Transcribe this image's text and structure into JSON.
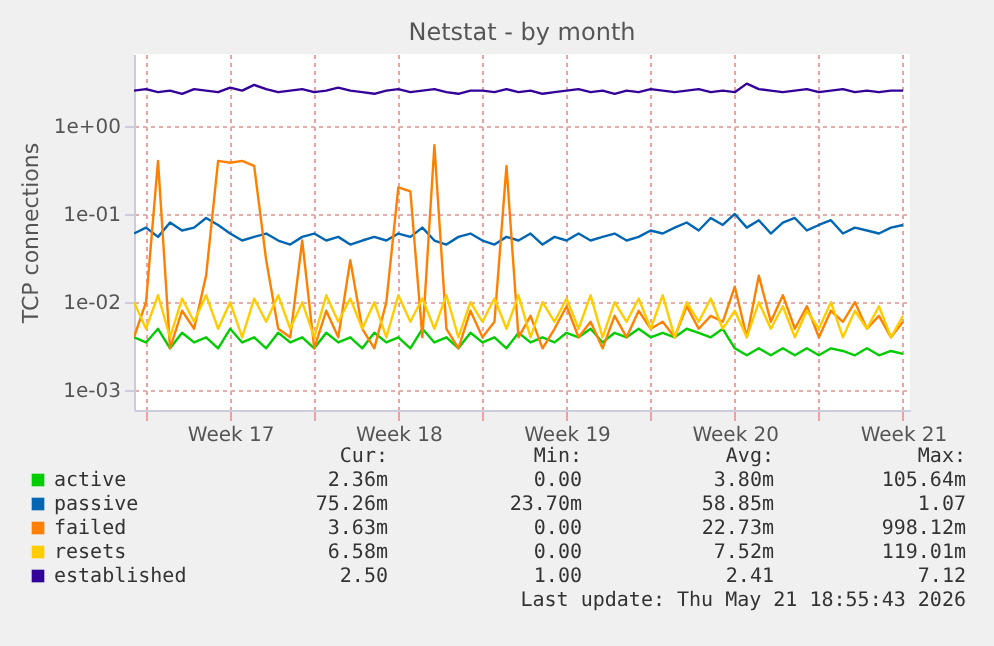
{
  "chart_data": {
    "type": "line",
    "title": "Netstat - by month",
    "ylabel": "TCP connections",
    "log": true,
    "grid": true,
    "legend": "bottom",
    "marker": "none",
    "line_style": "solid",
    "xlim": [
      "2026-04-19T12:00",
      "2026-05-21T19:00"
    ],
    "ylim": [
      0.0006,
      6.5
    ],
    "xticks": [
      {
        "value": "2026-04-20",
        "label": null
      },
      {
        "value": "2026-04-23T12:00",
        "label": "Week 17"
      },
      {
        "value": "2026-04-27",
        "label": null
      },
      {
        "value": "2026-04-30T12:00",
        "label": "Week 18"
      },
      {
        "value": "2026-05-04",
        "label": null
      },
      {
        "value": "2026-05-07T12:00",
        "label": "Week 19"
      },
      {
        "value": "2026-05-11",
        "label": null
      },
      {
        "value": "2026-05-14T12:00",
        "label": "Week 20"
      },
      {
        "value": "2026-05-18",
        "label": null
      },
      {
        "value": "2026-05-21T12:00",
        "label": "Week 21"
      }
    ],
    "yticks": [
      {
        "value": 0.001,
        "label": "1e-03"
      },
      {
        "value": 0.01,
        "label": "1e-02"
      },
      {
        "value": 0.1,
        "label": "1e-01"
      },
      {
        "value": 1,
        "label": "1e+00"
      }
    ],
    "x": [
      "2026-04-19T12:00",
      "2026-04-20T00:00",
      "2026-04-20T12:00",
      "2026-04-21T00:00",
      "2026-04-21T12:00",
      "2026-04-22T00:00",
      "2026-04-22T12:00",
      "2026-04-23T00:00",
      "2026-04-23T12:00",
      "2026-04-24T00:00",
      "2026-04-24T12:00",
      "2026-04-25T00:00",
      "2026-04-25T12:00",
      "2026-04-26T00:00",
      "2026-04-26T12:00",
      "2026-04-27T00:00",
      "2026-04-27T12:00",
      "2026-04-28T00:00",
      "2026-04-28T12:00",
      "2026-04-29T00:00",
      "2026-04-29T12:00",
      "2026-04-30T00:00",
      "2026-04-30T12:00",
      "2026-05-01T00:00",
      "2026-05-01T12:00",
      "2026-05-02T00:00",
      "2026-05-02T12:00",
      "2026-05-03T00:00",
      "2026-05-03T12:00",
      "2026-05-04T00:00",
      "2026-05-04T12:00",
      "2026-05-05T00:00",
      "2026-05-05T12:00",
      "2026-05-06T00:00",
      "2026-05-06T12:00",
      "2026-05-07T00:00",
      "2026-05-07T12:00",
      "2026-05-08T00:00",
      "2026-05-08T12:00",
      "2026-05-09T00:00",
      "2026-05-09T12:00",
      "2026-05-10T00:00",
      "2026-05-10T12:00",
      "2026-05-11T00:00",
      "2026-05-11T12:00",
      "2026-05-12T00:00",
      "2026-05-12T12:00",
      "2026-05-13T00:00",
      "2026-05-13T12:00",
      "2026-05-14T00:00",
      "2026-05-14T12:00",
      "2026-05-15T00:00",
      "2026-05-15T12:00",
      "2026-05-16T00:00",
      "2026-05-16T12:00",
      "2026-05-17T00:00",
      "2026-05-17T12:00",
      "2026-05-18T00:00",
      "2026-05-18T12:00",
      "2026-05-19T00:00",
      "2026-05-19T12:00",
      "2026-05-20T00:00",
      "2026-05-20T12:00",
      "2026-05-21T00:00",
      "2026-05-21T12:00"
    ],
    "series": [
      {
        "name": "active",
        "color": "#00cc00",
        "values": [
          0.004,
          0.0035,
          0.005,
          0.003,
          0.0045,
          0.0035,
          0.004,
          0.003,
          0.005,
          0.0035,
          0.004,
          0.003,
          0.0045,
          0.0035,
          0.004,
          0.003,
          0.0045,
          0.0035,
          0.004,
          0.003,
          0.0045,
          0.0035,
          0.004,
          0.003,
          0.005,
          0.0035,
          0.004,
          0.003,
          0.0045,
          0.0035,
          0.004,
          0.003,
          0.0045,
          0.0035,
          0.004,
          0.0035,
          0.0045,
          0.004,
          0.005,
          0.0035,
          0.0045,
          0.004,
          0.005,
          0.004,
          0.0045,
          0.004,
          0.005,
          0.0045,
          0.004,
          0.005,
          0.003,
          0.0025,
          0.003,
          0.0025,
          0.003,
          0.0025,
          0.003,
          0.0025,
          0.003,
          0.0028,
          0.0025,
          0.003,
          0.0025,
          0.0028,
          0.0026
        ]
      },
      {
        "name": "passive",
        "color": "#0066b3",
        "values": [
          0.06,
          0.07,
          0.055,
          0.08,
          0.065,
          0.07,
          0.09,
          0.075,
          0.06,
          0.05,
          0.055,
          0.06,
          0.05,
          0.045,
          0.055,
          0.06,
          0.05,
          0.055,
          0.045,
          0.05,
          0.055,
          0.05,
          0.06,
          0.055,
          0.07,
          0.05,
          0.045,
          0.055,
          0.06,
          0.05,
          0.045,
          0.055,
          0.05,
          0.06,
          0.045,
          0.055,
          0.05,
          0.06,
          0.05,
          0.055,
          0.06,
          0.05,
          0.055,
          0.065,
          0.06,
          0.07,
          0.08,
          0.065,
          0.09,
          0.075,
          0.1,
          0.07,
          0.085,
          0.06,
          0.08,
          0.09,
          0.065,
          0.075,
          0.085,
          0.06,
          0.07,
          0.065,
          0.06,
          0.07,
          0.075
        ]
      },
      {
        "name": "failed",
        "color": "#ff8000",
        "values": [
          0.004,
          0.01,
          0.4,
          0.003,
          0.008,
          0.005,
          0.02,
          0.4,
          0.38,
          0.4,
          0.35,
          0.03,
          0.005,
          0.004,
          0.05,
          0.003,
          0.008,
          0.004,
          0.03,
          0.005,
          0.003,
          0.01,
          0.2,
          0.18,
          0.004,
          0.6,
          0.005,
          0.003,
          0.008,
          0.004,
          0.006,
          0.35,
          0.004,
          0.007,
          0.003,
          0.005,
          0.009,
          0.004,
          0.006,
          0.003,
          0.007,
          0.004,
          0.008,
          0.005,
          0.006,
          0.004,
          0.009,
          0.005,
          0.007,
          0.006,
          0.015,
          0.004,
          0.02,
          0.006,
          0.012,
          0.005,
          0.009,
          0.004,
          0.008,
          0.006,
          0.01,
          0.005,
          0.007,
          0.004,
          0.006
        ]
      },
      {
        "name": "resets",
        "color": "#ffcc00",
        "values": [
          0.01,
          0.005,
          0.012,
          0.004,
          0.011,
          0.006,
          0.012,
          0.005,
          0.01,
          0.004,
          0.011,
          0.006,
          0.012,
          0.005,
          0.01,
          0.004,
          0.012,
          0.006,
          0.011,
          0.005,
          0.01,
          0.004,
          0.012,
          0.006,
          0.011,
          0.005,
          0.012,
          0.004,
          0.01,
          0.006,
          0.011,
          0.005,
          0.012,
          0.004,
          0.01,
          0.006,
          0.011,
          0.005,
          0.012,
          0.004,
          0.01,
          0.006,
          0.011,
          0.005,
          0.012,
          0.004,
          0.01,
          0.006,
          0.011,
          0.005,
          0.008,
          0.004,
          0.01,
          0.005,
          0.009,
          0.004,
          0.008,
          0.005,
          0.01,
          0.004,
          0.008,
          0.005,
          0.009,
          0.004,
          0.007
        ]
      },
      {
        "name": "established",
        "color": "#330099",
        "values": [
          2.5,
          2.6,
          2.4,
          2.5,
          2.3,
          2.6,
          2.5,
          2.4,
          2.7,
          2.5,
          2.9,
          2.6,
          2.4,
          2.5,
          2.6,
          2.4,
          2.5,
          2.7,
          2.5,
          2.4,
          2.3,
          2.5,
          2.6,
          2.4,
          2.5,
          2.6,
          2.4,
          2.3,
          2.5,
          2.5,
          2.4,
          2.6,
          2.4,
          2.5,
          2.3,
          2.4,
          2.5,
          2.6,
          2.4,
          2.5,
          2.3,
          2.5,
          2.4,
          2.6,
          2.5,
          2.4,
          2.5,
          2.6,
          2.4,
          2.5,
          2.4,
          3.0,
          2.6,
          2.5,
          2.4,
          2.5,
          2.6,
          2.4,
          2.5,
          2.6,
          2.4,
          2.5,
          2.4,
          2.5,
          2.5
        ]
      }
    ],
    "annotations": [
      "Cur:",
      "Min:",
      "Avg:",
      "Max:",
      "2.36m",
      "0.00",
      "3.80m",
      "105.64m",
      "75.26m",
      "23.70m",
      "58.85m",
      "1.07",
      "3.63m",
      "0.00",
      "22.73m",
      "998.12m",
      "6.58m",
      "0.00",
      "7.52m",
      "119.01m",
      "2.50",
      "1.00",
      "2.41",
      "7.12",
      "Last update: Thu May 21 18:55:43 2026"
    ]
  }
}
